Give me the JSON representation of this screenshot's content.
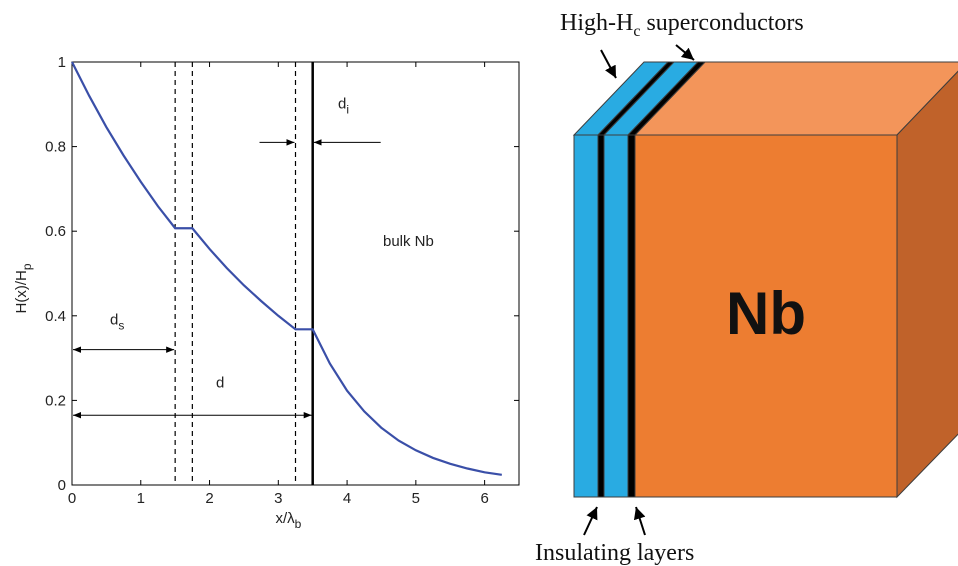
{
  "chart_data": {
    "type": "line",
    "xlabel": {
      "text": "x/λ",
      "sub": "b"
    },
    "ylabel": {
      "text": "H(x)/H",
      "sub": "p"
    },
    "x": [
      0,
      0.25,
      0.5,
      0.75,
      1,
      1.25,
      1.5,
      1.75,
      2,
      2.25,
      2.5,
      2.75,
      3,
      3.25,
      3.5,
      3.75,
      4,
      4.25,
      4.5,
      4.75,
      5,
      5.25,
      5.5,
      5.75,
      6,
      6.25
    ],
    "values": [
      1,
      0.92,
      0.846,
      0.779,
      0.717,
      0.659,
      0.607,
      0.607,
      0.558,
      0.513,
      0.472,
      0.435,
      0.4,
      0.368,
      0.368,
      0.287,
      0.223,
      0.174,
      0.135,
      0.105,
      0.082,
      0.064,
      0.05,
      0.039,
      0.03,
      0.024
    ],
    "color": "#3a4fa8",
    "dashed_lines": [
      1.5,
      1.75,
      3.25
    ],
    "solid_lines": [
      3.5
    ],
    "xlim": [
      0,
      6.5
    ],
    "ylim": [
      0,
      1
    ],
    "xticks": [
      0,
      1,
      2,
      3,
      4,
      5,
      6
    ],
    "yticks": [
      0,
      0.2,
      0.4,
      0.6,
      0.8,
      1
    ],
    "annotations": [
      {
        "text": "d",
        "sub": "s"
      },
      {
        "text": "d"
      },
      {
        "text": "d",
        "sub": "i"
      },
      {
        "text": "bulk Nb"
      }
    ]
  },
  "diagram": {
    "top_label": {
      "text": "High-H",
      "sub": "c",
      "tail": " superconductors"
    },
    "bottom_label": "Insulating layers",
    "block_label": "Nb"
  }
}
